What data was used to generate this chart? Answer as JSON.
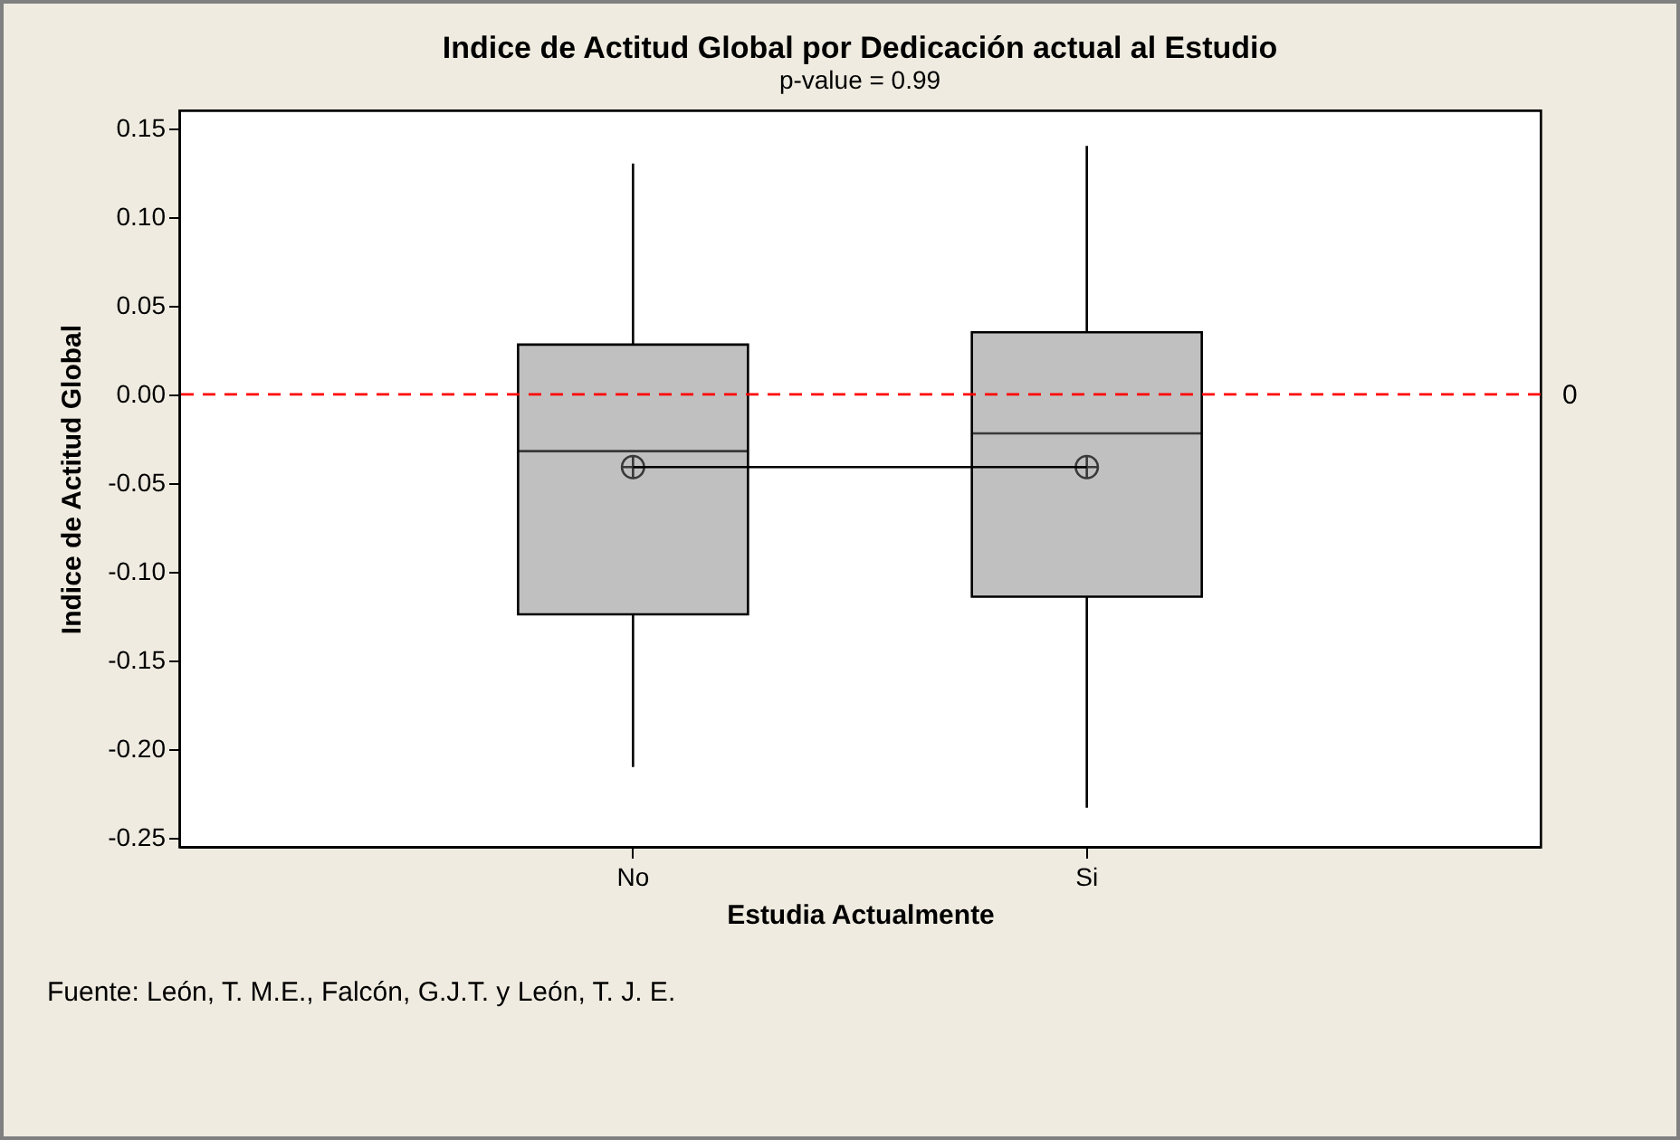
{
  "chart_data": {
    "type": "box",
    "title": "Indice de Actitud  Global por Dedicación actual al Estudio",
    "subtitle": "p-value = 0.99",
    "xlabel": "Estudia Actualmente",
    "ylabel": "Indice de  Actitud Global",
    "categories": [
      "No",
      "Si"
    ],
    "series": [
      {
        "type": "box",
        "color": "#c0c0c0",
        "boxes": [
          {
            "low": -0.21,
            "q1": -0.124,
            "median": -0.032,
            "q3": 0.028,
            "high": 0.13,
            "mean": -0.041
          },
          {
            "low": -0.233,
            "q1": -0.114,
            "median": -0.022,
            "q3": 0.035,
            "high": 0.14,
            "mean": -0.041
          }
        ]
      },
      {
        "type": "line",
        "color": "#000000",
        "values": [
          -0.041,
          -0.041
        ]
      }
    ],
    "ylim": [
      -0.255,
      0.16
    ],
    "yticks": [
      {
        "value": -0.25,
        "label": "-0.25"
      },
      {
        "value": -0.2,
        "label": "-0.20"
      },
      {
        "value": -0.15,
        "label": "-0.15"
      },
      {
        "value": -0.1,
        "label": "-0.10"
      },
      {
        "value": -0.05,
        "label": "-0.05"
      },
      {
        "value": 0,
        "label": "0.00"
      },
      {
        "value": 0.05,
        "label": "0.05"
      },
      {
        "value": 0.1,
        "label": "0.10"
      },
      {
        "value": 0.15,
        "label": "0.15"
      }
    ],
    "ref_lines": [
      {
        "axis": "y",
        "value": 0,
        "label": "0",
        "color": "#ff0000",
        "line_style": "dashed"
      }
    ],
    "annotations": [
      "Fuente: León, T. M.E., Falcón, G.J.T. y León, T. J. E."
    ]
  }
}
